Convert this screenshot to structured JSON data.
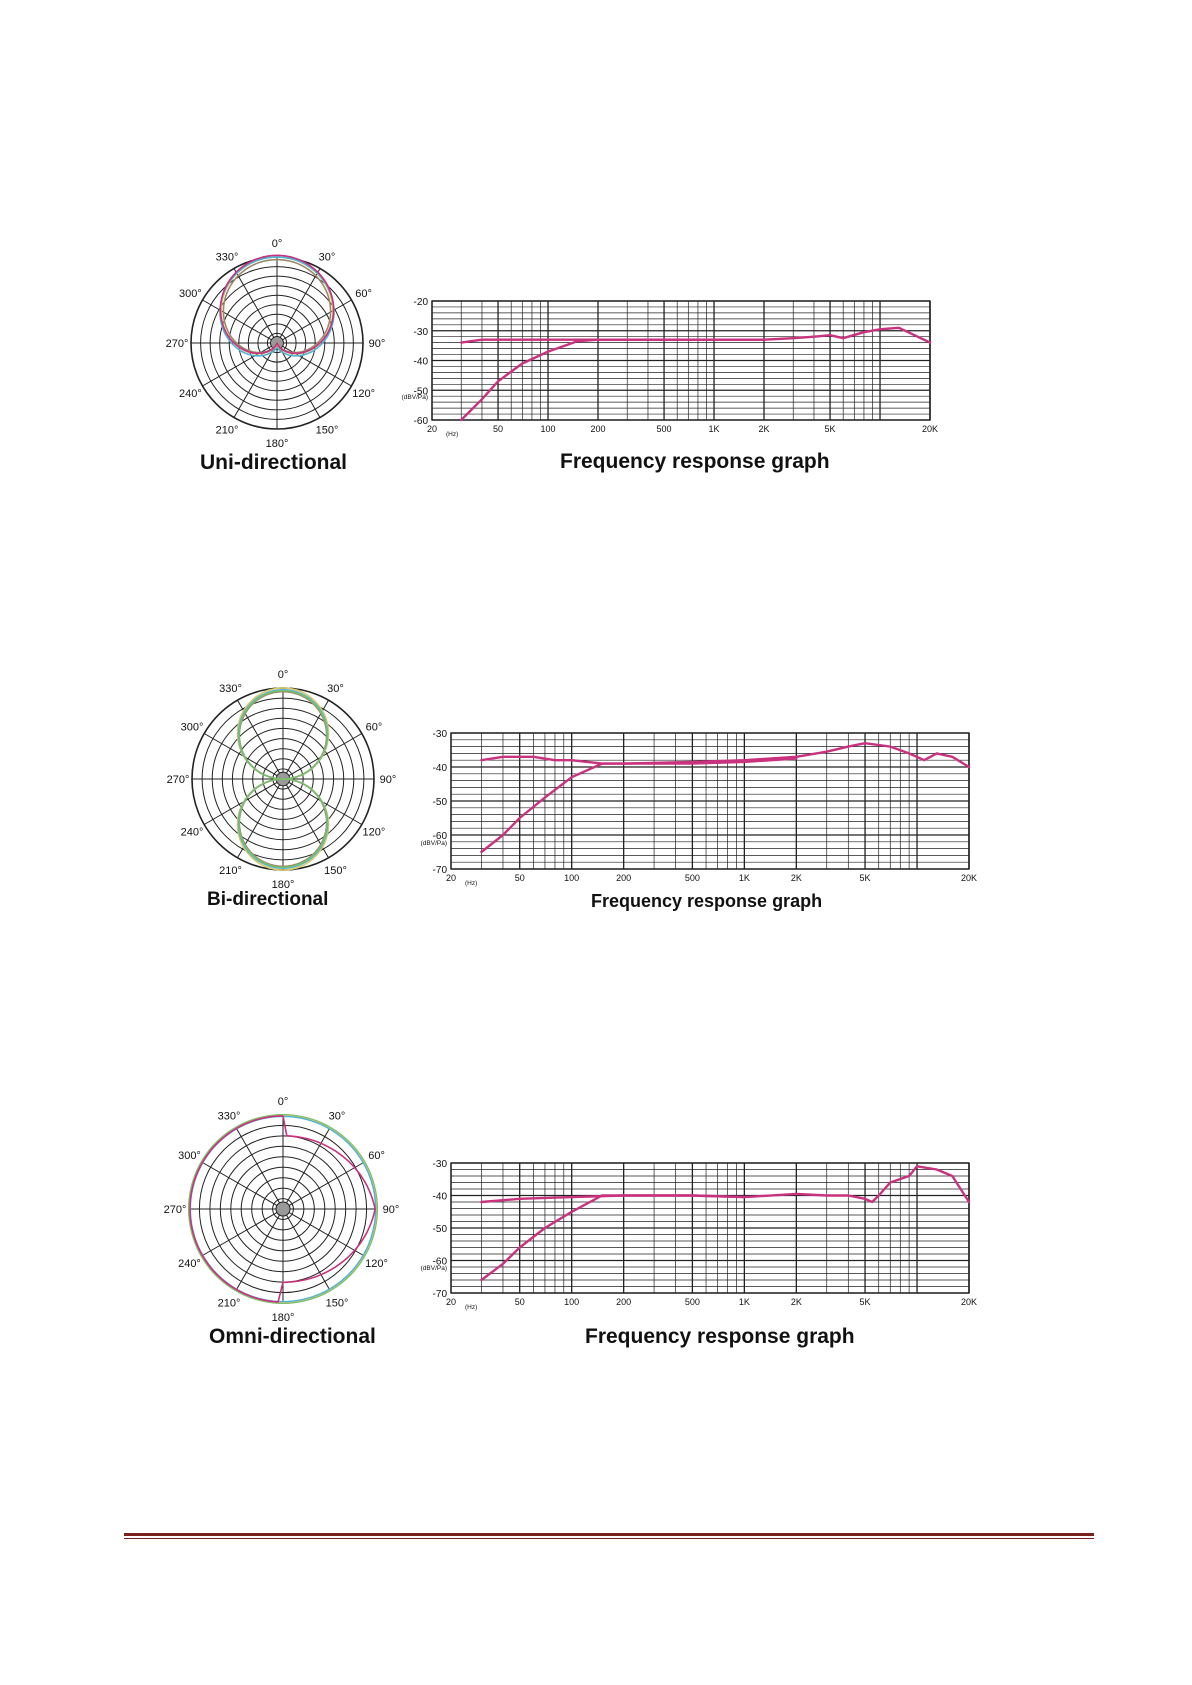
{
  "colors": {
    "curve": "#c8327f",
    "grid": "#222222",
    "polar_grid": "#222222",
    "footer_rule": "#7b1f1f"
  },
  "sections": [
    {
      "pattern_caption": "Uni-directional",
      "graph_caption": "Frequency response graph",
      "polar": {
        "angle_labels": [
          "0°",
          "30°",
          "60°",
          "90°",
          "120°",
          "150°",
          "180°",
          "210°",
          "240°",
          "270°",
          "300°",
          "330°"
        ],
        "pattern": "cardioid"
      },
      "chart_data": {
        "type": "line",
        "xscale": "log",
        "xlim": [
          20,
          20000
        ],
        "ylim": [
          -60,
          -20
        ],
        "y_ticks": [
          "-20",
          "-30",
          "-40",
          "-50",
          "-60"
        ],
        "ylabel": "(dBV/Pa)",
        "x_unit": "(Hz)",
        "x_ticks": [
          {
            "v": 20,
            "label": "20"
          },
          {
            "v": 50,
            "label": "50"
          },
          {
            "v": 100,
            "label": "100"
          },
          {
            "v": 200,
            "label": "200"
          },
          {
            "v": 500,
            "label": "500"
          },
          {
            "v": 1000,
            "label": "1K"
          },
          {
            "v": 2000,
            "label": "2K"
          },
          {
            "v": 5000,
            "label": "5K"
          },
          {
            "v": 20000,
            "label": "20K"
          }
        ],
        "series": [
          {
            "x": [
              30,
              40,
              60,
              100,
              200,
              500,
              1000,
              2000,
              3000,
              4000,
              5000,
              6000,
              8000,
              10000,
              13000,
              20000
            ],
            "y": [
              -34,
              -33,
              -33,
              -33,
              -33,
              -33,
              -33,
              -33,
              -32.5,
              -32,
              -31.5,
              -32.5,
              -30.5,
              -29.5,
              -29,
              -34
            ]
          },
          {
            "x": [
              30,
              40,
              50,
              70,
              100,
              150,
              200,
              500,
              1000,
              2000
            ],
            "y": [
              -60,
              -53,
              -47,
              -41,
              -37,
              -33.5,
              -33,
              -33,
              -33,
              -33
            ]
          }
        ]
      }
    },
    {
      "pattern_caption": "Bi-directional",
      "graph_caption": "Frequency response graph",
      "polar": {
        "angle_labels": [
          "0°",
          "30°",
          "60°",
          "90°",
          "120°",
          "150°",
          "180°",
          "210°",
          "240°",
          "270°",
          "300°",
          "330°"
        ],
        "pattern": "figure-eight"
      },
      "chart_data": {
        "type": "line",
        "xscale": "log",
        "xlim": [
          20,
          20000
        ],
        "ylim": [
          -70,
          -30
        ],
        "y_ticks": [
          "-30",
          "-40",
          "-50",
          "-60",
          "-70"
        ],
        "ylabel": "(dBV/Pa)",
        "x_unit": "(Hz)",
        "x_ticks": [
          {
            "v": 20,
            "label": "20"
          },
          {
            "v": 50,
            "label": "50"
          },
          {
            "v": 100,
            "label": "100"
          },
          {
            "v": 200,
            "label": "200"
          },
          {
            "v": 500,
            "label": "500"
          },
          {
            "v": 1000,
            "label": "1K"
          },
          {
            "v": 2000,
            "label": "2K"
          },
          {
            "v": 5000,
            "label": "5K"
          },
          {
            "v": 20000,
            "label": "20K"
          }
        ],
        "series": [
          {
            "x": [
              30,
              40,
              60,
              80,
              100,
              150,
              200,
              500,
              1000,
              2000,
              3000,
              4000,
              5000,
              7000,
              9000,
              11000,
              13000,
              16000,
              20000
            ],
            "y": [
              -38,
              -37,
              -37,
              -38,
              -38,
              -39,
              -39,
              -38.5,
              -38,
              -37,
              -35.5,
              -34,
              -33,
              -34,
              -36,
              -38,
              -36,
              -37,
              -40
            ]
          },
          {
            "x": [
              30,
              40,
              50,
              70,
              100,
              150,
              200,
              500,
              1000,
              2000
            ],
            "y": [
              -65,
              -60,
              -55,
              -49,
              -43,
              -39,
              -39,
              -39,
              -38.5,
              -37.5
            ]
          }
        ]
      }
    },
    {
      "pattern_caption": "Omni-directional",
      "graph_caption": "Frequency response graph",
      "polar": {
        "angle_labels": [
          "0°",
          "30°",
          "60°",
          "90°",
          "120°",
          "150°",
          "180°",
          "210°",
          "240°",
          "270°",
          "300°",
          "330°"
        ],
        "pattern": "omni"
      },
      "chart_data": {
        "type": "line",
        "xscale": "log",
        "xlim": [
          20,
          20000
        ],
        "ylim": [
          -70,
          -30
        ],
        "y_ticks": [
          "-30",
          "-40",
          "-50",
          "-60",
          "-70"
        ],
        "ylabel": "(dBV/Pa)",
        "x_unit": "(Hz)",
        "x_ticks": [
          {
            "v": 20,
            "label": "20"
          },
          {
            "v": 50,
            "label": "50"
          },
          {
            "v": 100,
            "label": "100"
          },
          {
            "v": 200,
            "label": "200"
          },
          {
            "v": 500,
            "label": "500"
          },
          {
            "v": 1000,
            "label": "1K"
          },
          {
            "v": 2000,
            "label": "2K"
          },
          {
            "v": 5000,
            "label": "5K"
          },
          {
            "v": 20000,
            "label": "20K"
          }
        ],
        "series": [
          {
            "x": [
              30,
              50,
              100,
              200,
              500,
              1000,
              2000,
              3000,
              4000,
              5000,
              5500,
              6000,
              7000,
              9000,
              10000,
              13000,
              16000,
              20000
            ],
            "y": [
              -42,
              -41,
              -40.5,
              -40,
              -40,
              -40.5,
              -39.5,
              -40,
              -40,
              -41,
              -42,
              -40,
              -36,
              -34,
              -31,
              -32,
              -34,
              -42
            ]
          },
          {
            "x": [
              30,
              40,
              50,
              70,
              100,
              150,
              200,
              500,
              1000
            ],
            "y": [
              -66,
              -61,
              -56,
              -50,
              -45,
              -40,
              -40,
              -40,
              -40.5
            ]
          }
        ]
      }
    }
  ]
}
